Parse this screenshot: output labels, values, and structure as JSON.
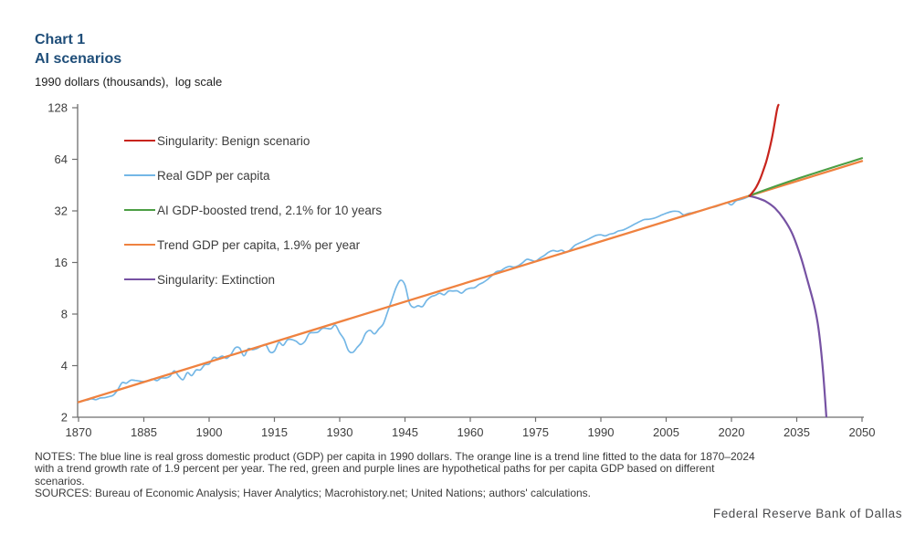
{
  "header": {
    "chart_label": "Chart 1",
    "title": "AI scenarios",
    "subtitle": "1990 dollars (thousands),  log scale"
  },
  "colors": {
    "title_navy": "#1F4E79",
    "red": "#c8241d",
    "blue": "#74b7e6",
    "green": "#4c9e44",
    "orange": "#ef8240",
    "purple": "#7652a3",
    "axis": "#6e6e6e",
    "tick_text": "#3d3d3d"
  },
  "legend": {
    "items": [
      {
        "label": "Singularity: Benign scenario",
        "color": "#c8241d"
      },
      {
        "label": "Real GDP per capita",
        "color": "#74b7e6"
      },
      {
        "label": "AI GDP-boosted trend, 2.1% for 10 years",
        "color": "#4c9e44"
      },
      {
        "label": "Trend GDP per capita, 1.9% per year",
        "color": "#ef8240"
      },
      {
        "label": "Singularity: Extinction",
        "color": "#7652a3"
      }
    ]
  },
  "notes": {
    "lines": [
      "NOTES: The blue line is real gross domestic product (GDP) per capita in 1990 dollars. The orange line is a trend line fitted to the data for 1870–2024",
      "with a trend growth rate of 1.9 percent per year. The red, green and purple lines are hypothetical paths for per capita GDP based on different",
      "scenarios.",
      "SOURCES: Bureau of Economic Analysis; Haver Analytics; Macrohistory.net; United Nations; authors' calculations."
    ]
  },
  "footer": {
    "org": "Federal Reserve Bank of Dallas"
  },
  "chart_data": {
    "type": "line",
    "title": "AI scenarios",
    "ylabel": "1990 dollars (thousands), log scale",
    "xlabel": "",
    "scale": "log2",
    "grid": false,
    "legend_position": "upper-left-inside",
    "x_range": [
      1870,
      2050
    ],
    "y_range": [
      2,
      128
    ],
    "x_ticks": [
      1870,
      1885,
      1900,
      1915,
      1930,
      1945,
      1960,
      1975,
      1990,
      2005,
      2020,
      2035,
      2050
    ],
    "y_ticks": [
      2,
      4,
      8,
      16,
      32,
      64,
      128
    ],
    "series": [
      {
        "name": "Real GDP per capita",
        "color": "#74b7e6",
        "width": 1.7,
        "start_year": 1870,
        "annual_values": [
          2.45,
          2.5,
          2.52,
          2.56,
          2.53,
          2.59,
          2.6,
          2.64,
          2.69,
          2.89,
          3.18,
          3.16,
          3.29,
          3.28,
          3.25,
          3.23,
          3.27,
          3.34,
          3.27,
          3.39,
          3.39,
          3.47,
          3.73,
          3.48,
          3.31,
          3.64,
          3.5,
          3.77,
          3.78,
          4.05,
          4.09,
          4.46,
          4.42,
          4.55,
          4.41,
          4.64,
          5.08,
          5.07,
          4.56,
          5.02,
          4.96,
          5.04,
          5.2,
          5.3,
          4.8,
          4.86,
          5.46,
          5.25,
          5.66,
          5.68,
          5.55,
          5.32,
          5.54,
          6.16,
          6.23,
          6.28,
          6.6,
          6.6,
          6.57,
          6.9,
          6.21,
          5.69,
          4.91,
          4.78,
          5.11,
          5.47,
          6.2,
          6.43,
          6.13,
          6.56,
          7.01,
          8.21,
          9.74,
          11.5,
          12.6,
          11.8,
          9.3,
          8.75,
          8.95,
          8.85,
          9.6,
          10.1,
          10.3,
          10.6,
          10.36,
          10.9,
          10.9,
          10.92,
          10.6,
          11.1,
          11.33,
          11.4,
          11.9,
          12.24,
          12.77,
          13.42,
          14.13,
          14.33,
          14.86,
          15.18,
          15.03,
          15.3,
          15.94,
          16.69,
          16.49,
          16.28,
          16.98,
          17.57,
          18.37,
          18.79,
          18.58,
          18.86,
          18.33,
          19.0,
          20.12,
          20.72,
          21.24,
          21.79,
          22.5,
          23.06,
          23.2,
          22.86,
          23.4,
          23.7,
          24.42,
          24.71,
          25.35,
          26.15,
          26.98,
          27.8,
          28.5,
          28.6,
          28.9,
          29.5,
          30.3,
          31.0,
          31.6,
          31.9,
          31.6,
          30.3,
          30.9,
          31.2,
          31.7,
          32.1,
          32.7,
          33.4,
          33.7,
          34.3,
          35.1,
          35.8,
          34.7,
          36.6,
          37.2,
          37.9,
          38.9
        ]
      },
      {
        "name": "Trend GDP per capita, 1.9% per year",
        "color": "#ef8240",
        "width": 2.3,
        "points": [
          [
            1870,
            2.45
          ],
          [
            2050,
            62.5
          ]
        ]
      },
      {
        "name": "AI GDP-boosted trend, 2.1% for 10 years",
        "color": "#4c9e44",
        "width": 2.1,
        "points": [
          [
            2024,
            39.2
          ],
          [
            2034,
            48.2
          ],
          [
            2050,
            65.0
          ]
        ]
      },
      {
        "name": "Singularity: Extinction",
        "color": "#7652a3",
        "width": 2.2,
        "points": [
          [
            2024.3,
            39.0
          ],
          [
            2026,
            38.0
          ],
          [
            2028,
            36.2
          ],
          [
            2030,
            33.2
          ],
          [
            2032,
            28.8
          ],
          [
            2034,
            23.5
          ],
          [
            2036,
            17.0
          ],
          [
            2037.5,
            12.5
          ],
          [
            2039,
            9.0
          ],
          [
            2040,
            6.6
          ],
          [
            2041,
            3.8
          ],
          [
            2041.8,
            2.02
          ]
        ]
      },
      {
        "name": "Singularity: Benign scenario",
        "color": "#c8241d",
        "width": 2.2,
        "points": [
          [
            2024.2,
            39.2
          ],
          [
            2025,
            41.5
          ],
          [
            2025.8,
            44.5
          ],
          [
            2026.5,
            48.5
          ],
          [
            2027.2,
            54
          ],
          [
            2027.9,
            61
          ],
          [
            2028.6,
            71
          ],
          [
            2029.3,
            85
          ],
          [
            2029.9,
            103
          ],
          [
            2030.5,
            126
          ],
          [
            2030.8,
            133
          ]
        ]
      }
    ]
  }
}
